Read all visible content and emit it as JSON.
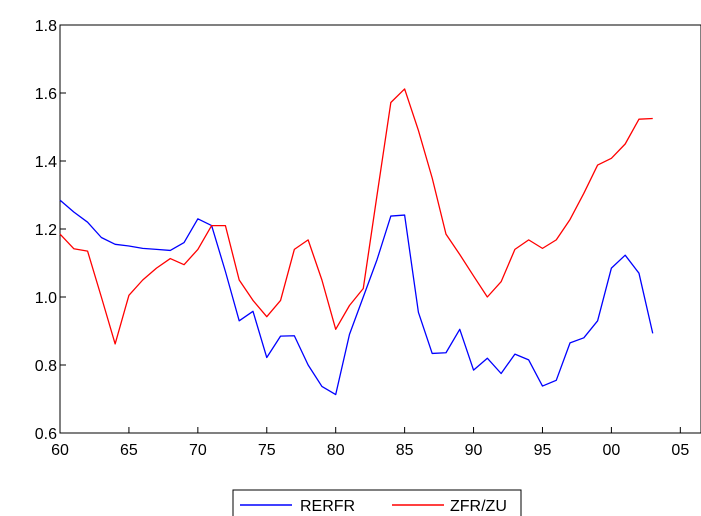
{
  "chart_data": {
    "type": "line",
    "title": "",
    "xlabel": "",
    "ylabel": "",
    "xlim": [
      1960,
      2006.5
    ],
    "ylim": [
      0.6,
      1.8
    ],
    "x_ticks": [
      1960,
      1965,
      1970,
      1975,
      1980,
      1985,
      1990,
      1995,
      2000,
      2005
    ],
    "x_tick_labels": [
      "60",
      "65",
      "70",
      "75",
      "80",
      "85",
      "90",
      "95",
      "00",
      "05"
    ],
    "y_ticks": [
      0.6,
      0.8,
      1.0,
      1.2,
      1.4,
      1.6,
      1.8
    ],
    "y_tick_labels": [
      "0.6",
      "0.8",
      "1.0",
      "1.2",
      "1.4",
      "1.6",
      "1.8"
    ],
    "grid": false,
    "legend_position": "bottom",
    "x": [
      1960,
      1961,
      1962,
      1963,
      1964,
      1965,
      1966,
      1967,
      1968,
      1969,
      1970,
      1971,
      1972,
      1973,
      1974,
      1975,
      1976,
      1977,
      1978,
      1979,
      1980,
      1981,
      1982,
      1983,
      1984,
      1985,
      1986,
      1987,
      1988,
      1989,
      1990,
      1991,
      1992,
      1993,
      1994,
      1995,
      1996,
      1997,
      1998,
      1999,
      2000,
      2001,
      2002,
      2003
    ],
    "series": [
      {
        "name": "RERFR",
        "color": "#0000ff",
        "values": [
          1.285,
          1.25,
          1.22,
          1.175,
          1.155,
          1.15,
          1.143,
          1.14,
          1.137,
          1.16,
          1.23,
          1.21,
          1.075,
          0.93,
          0.958,
          0.822,
          0.885,
          0.886,
          0.8,
          0.737,
          0.713,
          0.89,
          1.0,
          1.11,
          1.238,
          1.241,
          0.955,
          0.834,
          0.836,
          0.905,
          0.785,
          0.82,
          0.775,
          0.832,
          0.815,
          0.738,
          0.755,
          0.865,
          0.88,
          0.93,
          1.085,
          1.123,
          1.07,
          0.893
        ]
      },
      {
        "name": "ZFR/ZU",
        "color": "#ff0000",
        "values": [
          1.185,
          1.142,
          1.135,
          1.0,
          0.862,
          1.005,
          1.05,
          1.085,
          1.113,
          1.095,
          1.14,
          1.21,
          1.21,
          1.05,
          0.99,
          0.942,
          0.99,
          1.14,
          1.168,
          1.05,
          0.905,
          0.975,
          1.025,
          1.3,
          1.572,
          1.612,
          1.49,
          1.35,
          1.185,
          1.125,
          1.062,
          1.0,
          1.045,
          1.14,
          1.168,
          1.143,
          1.168,
          1.228,
          1.305,
          1.388,
          1.408,
          1.45,
          1.523,
          1.525
        ]
      }
    ]
  }
}
